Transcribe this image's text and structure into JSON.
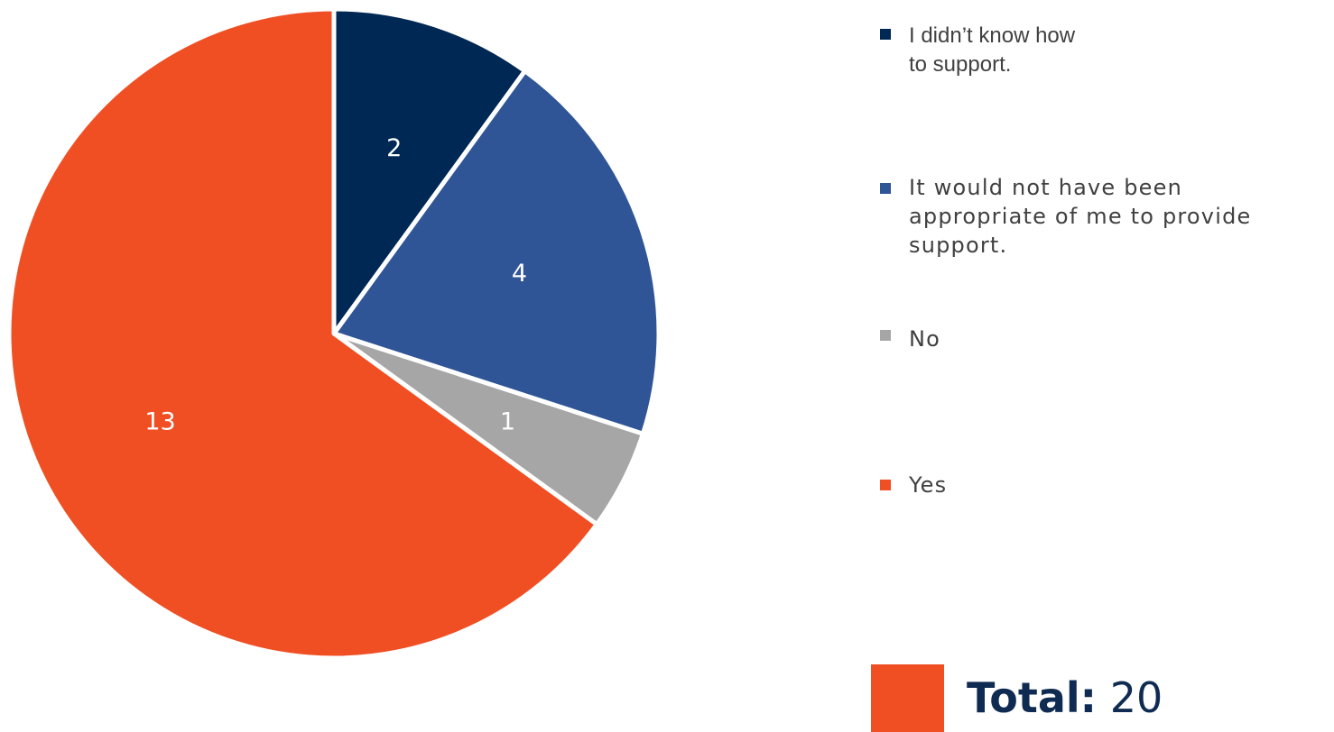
{
  "chart_data": {
    "type": "pie",
    "categories": [
      "I didn’t know how\nto support.",
      "It would not have been\nappropriate of me to provide\nsupport.",
      "No",
      "Yes"
    ],
    "values": [
      2,
      4,
      1,
      13
    ],
    "data_labels": [
      "2",
      "4",
      "1",
      "13"
    ],
    "colors": [
      "#002855",
      "#2f5597",
      "#a6a6a6",
      "#f04f23"
    ],
    "legend_position": "right"
  },
  "legend": {
    "items": [
      "I didn’t know how\nto support.",
      "It would not have been\nappropriate of me to provide\nsupport.",
      "No",
      "Yes"
    ]
  },
  "total": {
    "label": "Total:",
    "value": "20",
    "swatch_color": "#f04f23"
  }
}
